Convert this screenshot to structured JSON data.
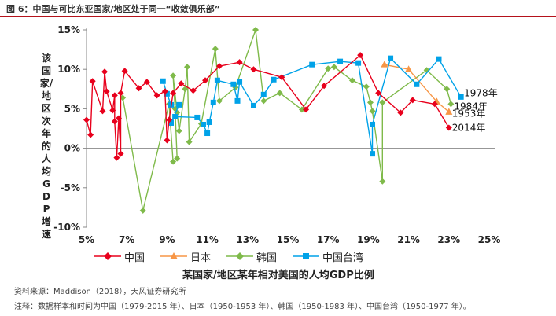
{
  "figure": {
    "title": "图 6：中国与可比东亚国家/地区处于同一“收敛俱乐部”",
    "source": "资料来源：Maddison（2018），天风证券研究所",
    "note": "注释：数据样本和时间为中国（1979-2015 年）、日本（1950-1953 年）、韩国（1950-1983 年）、中国台湾（1950-1977 年）。"
  },
  "chart_data": {
    "type": "line",
    "title": "",
    "xlabel": "某国家/地区某年相对美国的人均GDP比例",
    "ylabel": "该国家/地区次年的人均GDP增速",
    "xlim": [
      5,
      25
    ],
    "ylim": [
      -10,
      15
    ],
    "x_ticks": [
      "5%",
      "7%",
      "9%",
      "11%",
      "13%",
      "15%",
      "17%",
      "19%",
      "21%",
      "23%",
      "25%"
    ],
    "y_ticks": [
      "15%",
      "10%",
      "5%",
      "0%",
      "-5%",
      "-10%"
    ],
    "grid": false,
    "legend_position": "bottom",
    "series": [
      {
        "name": "中国",
        "color": "#e8001c",
        "marker": "diamond",
        "points": [
          [
            5.0,
            3.6
          ],
          [
            5.2,
            1.7
          ],
          [
            5.3,
            8.5
          ],
          [
            5.8,
            4.7
          ],
          [
            5.9,
            9.7
          ],
          [
            6.0,
            7.2
          ],
          [
            6.3,
            4.8
          ],
          [
            6.4,
            6.7
          ],
          [
            6.4,
            3.4
          ],
          [
            6.5,
            -1.2
          ],
          [
            6.6,
            3.8
          ],
          [
            6.7,
            -0.7
          ],
          [
            6.7,
            7.0
          ],
          [
            6.9,
            9.8
          ],
          [
            7.6,
            7.6
          ],
          [
            8.0,
            8.4
          ],
          [
            8.5,
            6.7
          ],
          [
            8.9,
            7.2
          ],
          [
            9.0,
            1.0
          ],
          [
            9.1,
            3.6
          ],
          [
            9.3,
            7.0
          ],
          [
            9.7,
            8.2
          ],
          [
            10.3,
            7.3
          ],
          [
            10.9,
            8.6
          ],
          [
            11.6,
            10.4
          ],
          [
            12.6,
            10.9
          ],
          [
            13.3,
            10.0
          ],
          [
            14.7,
            9.0
          ],
          [
            15.9,
            4.9
          ],
          [
            16.8,
            7.9
          ],
          [
            18.6,
            11.8
          ],
          [
            19.5,
            7.0
          ],
          [
            20.6,
            4.5
          ],
          [
            21.2,
            6.1
          ],
          [
            22.3,
            5.6
          ],
          [
            23.0,
            2.6
          ]
        ]
      },
      {
        "name": "日本",
        "color": "#f79646",
        "marker": "triangle",
        "points": [
          [
            19.8,
            10.6
          ],
          [
            21.0,
            10.0
          ],
          [
            22.4,
            5.9
          ],
          [
            23.0,
            4.6
          ]
        ]
      },
      {
        "name": "韩国",
        "color": "#7fba4a",
        "marker": "diamond",
        "points": [
          [
            6.8,
            6.4
          ],
          [
            7.8,
            -7.9
          ],
          [
            9.1,
            5.6
          ],
          [
            9.3,
            -1.7
          ],
          [
            9.5,
            -1.3
          ],
          [
            9.4,
            5.0
          ],
          [
            9.3,
            9.2
          ],
          [
            9.5,
            4.5
          ],
          [
            9.6,
            2.2
          ],
          [
            9.9,
            7.5
          ],
          [
            10.0,
            10.3
          ],
          [
            10.1,
            0.8
          ],
          [
            10.7,
            3.1
          ],
          [
            11.4,
            12.6
          ],
          [
            11.6,
            6.0
          ],
          [
            12.4,
            7.7
          ],
          [
            13.4,
            15.0
          ],
          [
            13.8,
            6.0
          ],
          [
            14.6,
            7.0
          ],
          [
            15.7,
            4.9
          ],
          [
            17.0,
            10.1
          ],
          [
            17.3,
            10.3
          ],
          [
            18.2,
            8.6
          ],
          [
            18.9,
            7.8
          ],
          [
            19.1,
            5.8
          ],
          [
            19.2,
            4.7
          ],
          [
            19.7,
            -4.2
          ],
          [
            19.7,
            5.8
          ],
          [
            21.9,
            9.9
          ],
          [
            22.9,
            7.5
          ],
          [
            23.1,
            5.6
          ]
        ]
      },
      {
        "name": "中国台湾",
        "color": "#00a2e8",
        "marker": "square",
        "points": [
          [
            8.8,
            8.5
          ],
          [
            9.0,
            6.9
          ],
          [
            9.2,
            5.5
          ],
          [
            9.6,
            5.5
          ],
          [
            9.2,
            3.2
          ],
          [
            9.4,
            4.0
          ],
          [
            10.5,
            3.9
          ],
          [
            10.8,
            3.0
          ],
          [
            11.0,
            1.9
          ],
          [
            11.1,
            3.3
          ],
          [
            11.3,
            5.8
          ],
          [
            11.5,
            8.6
          ],
          [
            12.3,
            8.1
          ],
          [
            12.5,
            6.0
          ],
          [
            12.6,
            8.4
          ],
          [
            13.3,
            5.4
          ],
          [
            13.8,
            6.8
          ],
          [
            14.3,
            8.7
          ],
          [
            16.2,
            10.6
          ],
          [
            17.6,
            11.0
          ],
          [
            18.5,
            10.8
          ],
          [
            19.2,
            -0.7
          ],
          [
            19.2,
            3.0
          ],
          [
            20.1,
            11.4
          ],
          [
            21.4,
            8.1
          ],
          [
            22.5,
            11.3
          ],
          [
            23.6,
            6.5
          ]
        ]
      }
    ],
    "annotations": [
      {
        "text": "1978年",
        "series": "中国台湾"
      },
      {
        "text": "1984年",
        "series": "韩国"
      },
      {
        "text": "1953年",
        "series": "日本"
      },
      {
        "text": "2014年",
        "series": "中国"
      }
    ]
  }
}
